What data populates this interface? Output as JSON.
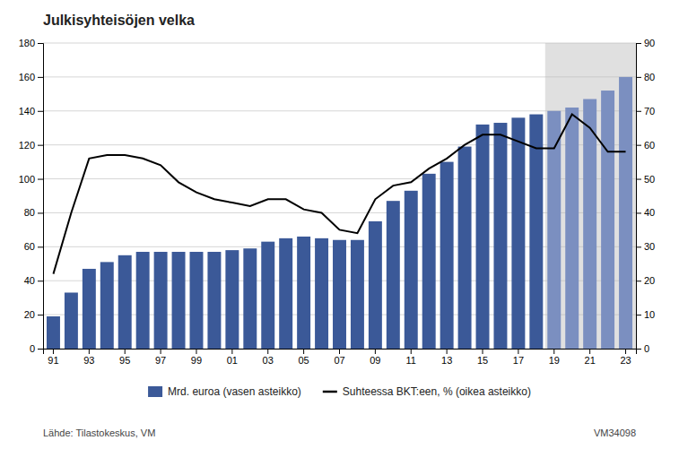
{
  "chart_data": {
    "type": "bar",
    "title": "Julkisyhteisöjen velka",
    "categories": [
      "91",
      null,
      "93",
      null,
      "95",
      null,
      "97",
      null,
      "99",
      null,
      "01",
      null,
      "03",
      null,
      "05",
      null,
      "07",
      null,
      "09",
      null,
      "11",
      null,
      "13",
      null,
      "15",
      null,
      "17",
      null,
      "19",
      null,
      "21",
      null,
      "23"
    ],
    "series": [
      {
        "name": "Mrd. euroa (vasen asteikko)",
        "type": "bar",
        "color": "#3B5998",
        "colors": [
          "#3B5998",
          "#3B5998",
          "#3B5998",
          "#3B5998",
          "#3B5998",
          "#3B5998",
          "#3B5998",
          "#3B5998",
          "#3B5998",
          "#3B5998",
          "#3B5998",
          "#3B5998",
          "#3B5998",
          "#3B5998",
          "#3B5998",
          "#3B5998",
          "#3B5998",
          "#3B5998",
          "#3B5998",
          "#3B5998",
          "#3B5998",
          "#3B5998",
          "#3B5998",
          "#3B5998",
          "#3B5998",
          "#3B5998",
          "#3B5998",
          "#3B5998",
          "#7B8FC0",
          "#7B8FC0",
          "#7B8FC0",
          "#7B8FC0",
          "#7B8FC0"
        ],
        "values": [
          19,
          33,
          47,
          51,
          55,
          57,
          57,
          57,
          57,
          57,
          58,
          59,
          63,
          65,
          66,
          65,
          64,
          64,
          75,
          87,
          93,
          103,
          110,
          119,
          132,
          133,
          136,
          138,
          140,
          142,
          147,
          152,
          160
        ]
      },
      {
        "name": "Suhteessa BKT:een, % (oikea asteikko)",
        "type": "line",
        "color": "#000000",
        "axis": "y2",
        "values": [
          22,
          40,
          56,
          57,
          57,
          56,
          54,
          49,
          46,
          44,
          43,
          42,
          44,
          44,
          41,
          40,
          35,
          34,
          44,
          48,
          49,
          53,
          56,
          60,
          63,
          63,
          61,
          59,
          59,
          69,
          65,
          58,
          58
        ]
      }
    ],
    "ylim": [
      0,
      180
    ],
    "yticks": [
      0,
      20,
      40,
      60,
      80,
      100,
      120,
      140,
      160,
      180
    ],
    "y2lim": [
      0,
      90
    ],
    "y2ticks": [
      0,
      10,
      20,
      30,
      40,
      50,
      60,
      70,
      80,
      90
    ],
    "grid": true,
    "legend": "bottom",
    "annotations": [
      "Lähde: Tilastokeskus, VM",
      "VM34098"
    ]
  }
}
